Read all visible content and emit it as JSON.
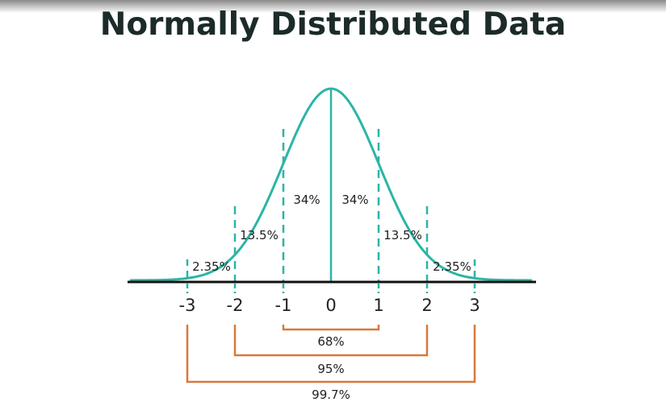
{
  "title": "Normally Distributed Data",
  "colors": {
    "curve": "#2bb5a6",
    "axis": "#111111",
    "brackets": "#d9783b",
    "text": "#222222"
  },
  "axis_ticks": [
    "-3",
    "-2",
    "-1",
    "0",
    "1",
    "2",
    "3"
  ],
  "region_percentages": {
    "left_tail": "2.35%",
    "left_second": "13.5%",
    "left_center": "34%",
    "right_center": "34%",
    "right_second": "13.5%",
    "right_tail": "2.35%"
  },
  "ranges": {
    "one_sigma": "68%",
    "two_sigma": "95%",
    "three_sigma": "99.7%"
  }
}
